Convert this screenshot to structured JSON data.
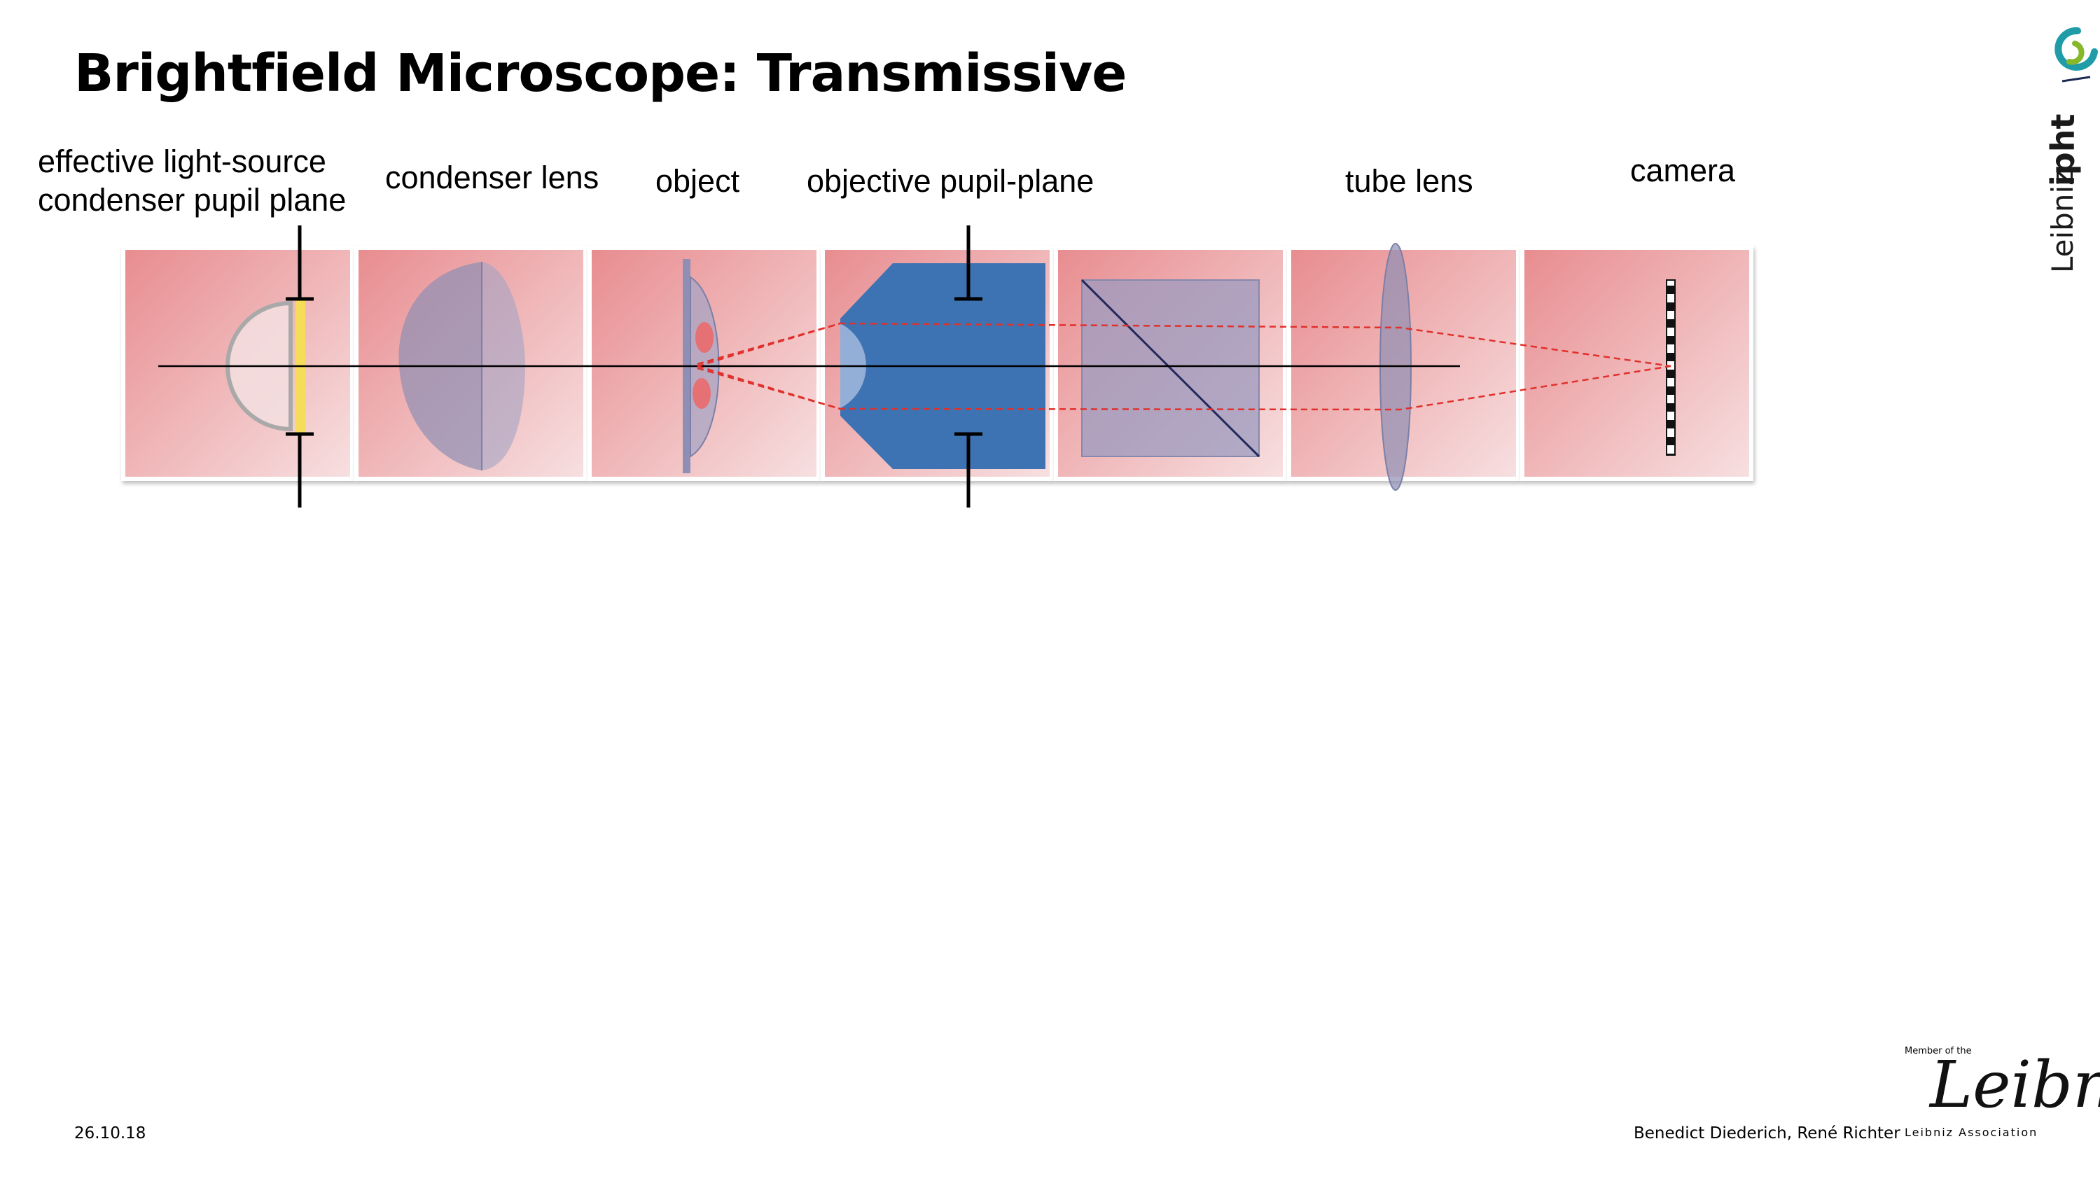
{
  "title": "Brightfield Microscope: Transmissive",
  "labels": {
    "light_source_line1": "effective light-source",
    "light_source_line2": "condenser pupil plane",
    "condenser": "condenser lens",
    "object": "object",
    "objective": "objective pupil-plane",
    "tube_lens": "tube lens",
    "camera": "camera"
  },
  "footer": {
    "date": "26.10.18",
    "authors": "Benedict Diederich, René Richter"
  },
  "logo_top": {
    "word1": "Leibniz",
    "word2": "ipht"
  },
  "logo_bottom": {
    "member_of": "Member of the",
    "script": "Leibniz",
    "association": "Leibniz Association"
  },
  "colors": {
    "panel_dark": "#e88c8f",
    "panel_light": "#f6dcdd",
    "objective_blue": "#3d73b2",
    "ray_red": "#e0312c",
    "lens_gray": "#8e8fb4",
    "source_yellow": "#f5dd5a"
  },
  "icons": [
    "aperture-stop-icon",
    "leibniz-ipht-logo",
    "leibniz-association-logo"
  ]
}
